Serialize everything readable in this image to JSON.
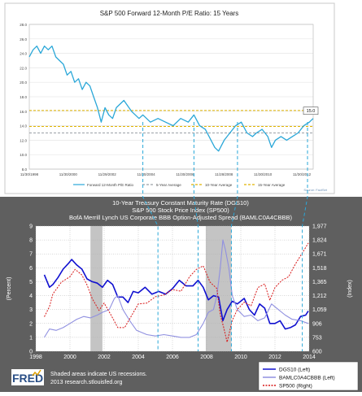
{
  "chart_data": [
    {
      "type": "line",
      "title": "S&P 500 Forward 12-Month P/E Ratio: 15 Years",
      "x_tick_labels": [
        "11/30/1998",
        "11/30/2000",
        "11/29/2002",
        "11/30/2004",
        "11/30/2006",
        "11/28/2008",
        "11/30/2010",
        "11/30/2012"
      ],
      "y_tick_labels": [
        "8.0",
        "10.0",
        "12.0",
        "14.0",
        "16.0",
        "18.0",
        "20.0",
        "22.0",
        "24.0",
        "26.0",
        "28.0"
      ],
      "ylim": [
        8,
        28
      ],
      "xlim": [
        1998.9,
        2013.9
      ],
      "grid": true,
      "legend": [
        "Forward 12-Month P/E Ratio",
        "5-Year Average",
        "10-Year Average",
        "15-Year Average"
      ],
      "legend_position": "bottom",
      "current_value_label": "15.0",
      "source": "Source: FactSet",
      "series": [
        {
          "name": "Forward 12-Month P/E Ratio",
          "color": "#2aa7d8",
          "x": [
            1998.9,
            1999.1,
            1999.3,
            1999.5,
            1999.7,
            1999.9,
            2000.1,
            2000.3,
            2000.5,
            2000.7,
            2000.9,
            2001.1,
            2001.3,
            2001.5,
            2001.7,
            2001.9,
            2002.1,
            2002.3,
            2002.5,
            2002.7,
            2002.9,
            2003.1,
            2003.3,
            2003.5,
            2003.7,
            2003.9,
            2004.3,
            2004.7,
            2004.9,
            2005.3,
            2005.7,
            2006.1,
            2006.5,
            2006.9,
            2007.3,
            2007.6,
            2007.9,
            2008.2,
            2008.5,
            2008.7,
            2008.9,
            2009.2,
            2009.5,
            2009.8,
            2010.1,
            2010.4,
            2010.7,
            2010.9,
            2011.2,
            2011.5,
            2011.7,
            2011.9,
            2012.2,
            2012.5,
            2012.8,
            2013.1,
            2013.4,
            2013.7,
            2013.9
          ],
          "values": [
            23.5,
            24.5,
            25.0,
            24.0,
            25.0,
            24.5,
            25.0,
            23.5,
            23.0,
            22.5,
            21.0,
            21.5,
            20.0,
            20.5,
            19.0,
            20.0,
            19.5,
            18.0,
            16.5,
            14.5,
            16.5,
            15.5,
            15.0,
            16.5,
            17.0,
            17.5,
            16.0,
            15.0,
            15.5,
            14.5,
            15.0,
            14.5,
            14.0,
            15.0,
            14.5,
            15.5,
            14.0,
            13.5,
            12.0,
            11.0,
            10.5,
            12.0,
            13.0,
            14.0,
            14.5,
            13.0,
            12.5,
            13.0,
            13.5,
            12.5,
            11.0,
            12.0,
            12.5,
            12.0,
            12.5,
            13.0,
            14.0,
            14.5,
            15.0
          ]
        },
        {
          "name": "5-Year Average",
          "color": "#9aa0a6",
          "values": [
            13.0
          ]
        },
        {
          "name": "10-Year Average",
          "color": "#e0b400",
          "values": [
            13.9
          ]
        },
        {
          "name": "15-Year Average",
          "color": "#e0b400",
          "values": [
            16.1
          ]
        }
      ]
    },
    {
      "type": "line",
      "title": "10-Year Treasury Constant Maturity Rate (DGS10)",
      "subtitle_lines": [
        "S&P 500 Stock Price Index (SP500)",
        "BofA Merrill Lynch US Corporate BBB Option-Adjusted Spread (BAMLC0A4CBBB)"
      ],
      "ylabel_left": "(Percent)",
      "ylabel_right": "(Index)",
      "x_tick_labels": [
        "1998",
        "2000",
        "2002",
        "2004",
        "2006",
        "2008",
        "2010",
        "2012",
        "2014"
      ],
      "y_left_tick_labels": [
        "0",
        "1",
        "2",
        "3",
        "4",
        "5",
        "6",
        "7",
        "8",
        "9"
      ],
      "y_right_tick_labels": [
        "600",
        "753",
        "906",
        "1,059",
        "1,212",
        "1,365",
        "1,518",
        "1,671",
        "1,824",
        "1,977"
      ],
      "ylim_left": [
        0,
        9
      ],
      "ylim_right": [
        600,
        1977
      ],
      "xlim": [
        1998,
        2014
      ],
      "grid": true,
      "recession_shading": [
        [
          2001.2,
          2001.9
        ],
        [
          2007.95,
          2009.45
        ]
      ],
      "legend": [
        "DGS10 (Left)",
        "BAMLC0A4CBBB (Left)",
        "SP500 (Right)"
      ],
      "legend_position": "bottom-right",
      "footer_logo": "FRED",
      "footer_lines": [
        "Shaded areas indicate US recessions.",
        "2013 research.stlouisfed.org"
      ],
      "series": [
        {
          "name": "DGS10 (Left)",
          "color": "#1010d0",
          "x": [
            1998.5,
            1998.8,
            1999.0,
            1999.3,
            1999.6,
            1999.9,
            2000.1,
            2000.4,
            2000.7,
            2001.0,
            2001.3,
            2001.6,
            2001.9,
            2002.2,
            2002.5,
            2002.8,
            2003.1,
            2003.4,
            2003.7,
            2004.0,
            2004.4,
            2004.8,
            2005.2,
            2005.6,
            2006.0,
            2006.4,
            2006.8,
            2007.2,
            2007.5,
            2007.8,
            2008.1,
            2008.4,
            2008.7,
            2008.95,
            2009.2,
            2009.5,
            2009.8,
            2010.2,
            2010.5,
            2010.8,
            2011.1,
            2011.4,
            2011.7,
            2012.0,
            2012.3,
            2012.6,
            2012.9,
            2013.2,
            2013.5,
            2013.8,
            2013.95
          ],
          "values": [
            5.5,
            4.6,
            4.8,
            5.3,
            5.9,
            6.3,
            6.6,
            6.2,
            5.9,
            5.2,
            5.0,
            4.9,
            4.6,
            5.1,
            4.8,
            3.9,
            3.9,
            3.5,
            4.3,
            4.2,
            4.6,
            4.1,
            4.3,
            4.1,
            4.5,
            5.1,
            4.7,
            4.7,
            5.1,
            4.6,
            3.7,
            4.0,
            3.9,
            2.2,
            3.0,
            3.6,
            3.4,
            3.8,
            3.0,
            2.6,
            3.4,
            3.1,
            2.0,
            2.0,
            2.2,
            1.6,
            1.7,
            1.9,
            2.5,
            2.6,
            2.9
          ]
        },
        {
          "name": "BAMLC0A4CBBB (Left)",
          "color": "#9090e0",
          "x": [
            1998.5,
            1998.8,
            1999.2,
            1999.6,
            2000.0,
            2000.4,
            2000.8,
            2001.2,
            2001.6,
            2001.9,
            2002.3,
            2002.6,
            2002.8,
            2003.1,
            2003.5,
            2003.9,
            2004.5,
            2005.0,
            2005.5,
            2006.0,
            2006.5,
            2007.0,
            2007.4,
            2007.8,
            2008.1,
            2008.4,
            2008.6,
            2008.8,
            2008.95,
            2009.1,
            2009.3,
            2009.5,
            2009.8,
            2010.2,
            2010.6,
            2011.0,
            2011.4,
            2011.8,
            2012.2,
            2012.6,
            2013.0,
            2013.5,
            2013.95
          ],
          "values": [
            1.0,
            1.6,
            1.5,
            1.7,
            2.0,
            2.3,
            2.5,
            2.4,
            2.6,
            2.8,
            3.0,
            3.8,
            4.0,
            3.0,
            2.2,
            1.5,
            1.2,
            1.1,
            1.2,
            1.1,
            1.0,
            1.0,
            1.2,
            2.0,
            2.8,
            3.0,
            4.0,
            6.0,
            8.0,
            7.3,
            6.0,
            4.0,
            3.0,
            2.5,
            2.6,
            2.2,
            2.4,
            3.4,
            3.0,
            2.6,
            2.3,
            2.2,
            2.0
          ]
        },
        {
          "name": "SP500 (Right)",
          "color": "#d81818",
          "x": [
            1998.5,
            1998.8,
            1999.0,
            1999.5,
            2000.0,
            2000.3,
            2000.7,
            2001.0,
            2001.3,
            2001.7,
            2002.0,
            2002.4,
            2002.8,
            2003.2,
            2003.6,
            2004.0,
            2004.5,
            2005.0,
            2005.5,
            2006.0,
            2006.5,
            2007.0,
            2007.4,
            2007.8,
            2008.2,
            2008.6,
            2008.8,
            2009.0,
            2009.2,
            2009.5,
            2009.8,
            2010.2,
            2010.6,
            2011.0,
            2011.4,
            2011.7,
            2012.0,
            2012.4,
            2012.8,
            2013.2,
            2013.6,
            2013.95
          ],
          "values": [
            980,
            1090,
            1230,
            1360,
            1420,
            1500,
            1440,
            1330,
            1180,
            1050,
            1130,
            1000,
            860,
            860,
            990,
            1120,
            1130,
            1200,
            1220,
            1280,
            1260,
            1420,
            1500,
            1540,
            1360,
            1290,
            1000,
            860,
            700,
            940,
            1060,
            1140,
            1100,
            1300,
            1340,
            1160,
            1300,
            1380,
            1420,
            1560,
            1680,
            1790
          ]
        }
      ]
    }
  ]
}
